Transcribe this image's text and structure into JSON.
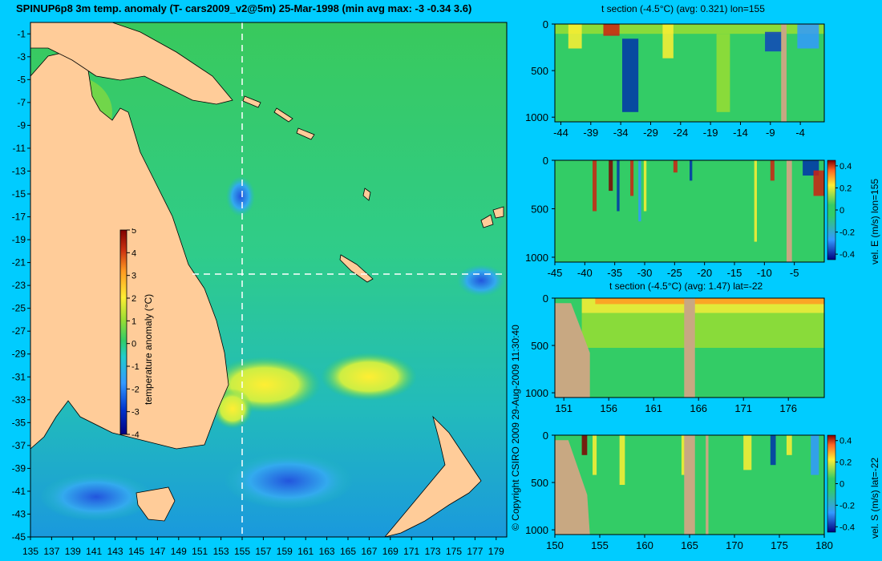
{
  "map": {
    "title": "SPINUP6p8 3m temp. anomaly (T- cars2009_v2@5m) 25-Mar-1998 (min avg max: -3 -0.34 3.6)",
    "lat_ticks": [
      "-1",
      "-3",
      "-5",
      "-7",
      "-9",
      "-11",
      "-13",
      "-15",
      "-17",
      "-19",
      "-21",
      "-23",
      "-25",
      "-27",
      "-29",
      "-31",
      "-33",
      "-35",
      "-37",
      "-39",
      "-41",
      "-43",
      "-45"
    ],
    "lon_ticks": [
      "135",
      "137",
      "139",
      "141",
      "143",
      "145",
      "147",
      "149",
      "151",
      "153",
      "155",
      "157",
      "159",
      "161",
      "163",
      "165",
      "167",
      "169",
      "171",
      "173",
      "175",
      "177",
      "179"
    ],
    "colorbar": {
      "label": "temperature anomaly (°C)",
      "ticks": [
        "5",
        "4",
        "3",
        "2",
        "1",
        "0",
        "-1",
        "-2",
        "-3",
        "-4"
      ]
    },
    "section_lon": 155,
    "section_lat": -22
  },
  "copyright": "© Copyright CSIRO 2009   29-Aug-2009 11:30:40",
  "colors": {
    "background": "#00ccff",
    "land": "#ffcc99",
    "section_land": "#c8a882",
    "ocean": "#33cc66"
  },
  "panels": [
    {
      "title": "t section (-4.5°C) (avg: 0.321) lon=155",
      "x_ticks": [
        "-44",
        "-39",
        "-34",
        "-29",
        "-24",
        "-19",
        "-14",
        "-9",
        "-4"
      ],
      "y_ticks": [
        "0",
        "500",
        "1000"
      ]
    },
    {
      "title": "",
      "x_ticks": [
        "-45",
        "-40",
        "-35",
        "-30",
        "-25",
        "-20",
        "-15",
        "-10",
        "-5"
      ],
      "y_ticks": [
        "0",
        "500",
        "1000"
      ],
      "colorbar": {
        "label": "vel. E (m/s) lon=155",
        "ticks": [
          "0.4",
          "0.2",
          "0",
          "-0.2",
          "-0.4"
        ]
      }
    },
    {
      "title": "t section (-4.5°C) (avg: 1.47) lat=-22",
      "x_ticks": [
        "151",
        "156",
        "161",
        "166",
        "171",
        "176"
      ],
      "y_ticks": [
        "0",
        "500",
        "1000"
      ]
    },
    {
      "title": "",
      "x_ticks": [
        "150",
        "155",
        "160",
        "165",
        "170",
        "175",
        "180"
      ],
      "y_ticks": [
        "0",
        "500",
        "1000"
      ],
      "colorbar": {
        "label": "vel. S (m/s) lat=-22",
        "ticks": [
          "0.4",
          "0.2",
          "0",
          "-0.2",
          "-0.4"
        ]
      }
    }
  ],
  "chart_data": [
    {
      "type": "heatmap",
      "title": "SPINUP6p8 3m temp. anomaly (T- cars2009_v2@5m) 25-Mar-1998 (min avg max: -3 -0.34 3.6)",
      "xlabel": "",
      "ylabel": "",
      "xlim": [
        135,
        180
      ],
      "ylim": [
        -45,
        0
      ],
      "value_range": [
        -4,
        5
      ],
      "colorbar_label": "temperature anomaly (°C)",
      "stats": {
        "min": -3,
        "avg": -0.34,
        "max": 3.6
      }
    },
    {
      "type": "heatmap",
      "title": "t section (-4.5°C) (avg: 0.321) lon=155",
      "xlim": [
        -45,
        0
      ],
      "ylim": [
        1050,
        0
      ],
      "stats": {
        "avg": 0.321
      }
    },
    {
      "type": "heatmap",
      "title": "",
      "xlim": [
        -45,
        0
      ],
      "ylim": [
        1050,
        0
      ],
      "value_range": [
        -0.4,
        0.4
      ],
      "colorbar_label": "vel. E (m/s) lon=155"
    },
    {
      "type": "heatmap",
      "title": "t section (-4.5°C) (avg: 1.47) lat=-22",
      "xlim": [
        150,
        180
      ],
      "ylim": [
        1050,
        0
      ],
      "stats": {
        "avg": 1.47
      }
    },
    {
      "type": "heatmap",
      "title": "",
      "xlim": [
        150,
        180
      ],
      "ylim": [
        1050,
        0
      ],
      "value_range": [
        -0.4,
        0.4
      ],
      "colorbar_label": "vel. S (m/s) lat=-22"
    }
  ]
}
